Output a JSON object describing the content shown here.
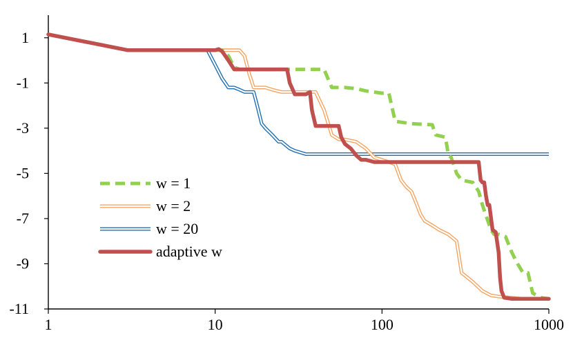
{
  "chart_data": {
    "type": "line",
    "title": "",
    "xlabel": "",
    "ylabel": "",
    "xscale": "log",
    "xlim": [
      1,
      1000
    ],
    "ylim": [
      -11,
      2
    ],
    "x_ticks": [
      "1",
      "10",
      "100",
      "1000"
    ],
    "y_ticks": [
      "1",
      "-1",
      "-3",
      "-5",
      "-7",
      "-9",
      "-11"
    ],
    "legend_position": "lower-left",
    "series": [
      {
        "name": "w = 1",
        "style": "dashed",
        "color": "#92d050",
        "x": [
          1,
          3,
          10,
          11,
          12,
          13,
          14,
          15,
          16,
          18,
          20,
          25,
          30,
          40,
          45,
          48,
          50,
          55,
          60,
          70,
          80,
          100,
          110,
          115,
          120,
          150,
          200,
          210,
          240,
          250,
          260,
          280,
          300,
          350,
          380,
          400,
          450,
          470,
          480,
          500,
          550,
          600,
          650,
          700,
          750,
          800,
          900,
          1000
        ],
        "y": [
          1.15,
          0.45,
          0.45,
          0.45,
          0.2,
          -0.3,
          -0.4,
          -0.4,
          -0.4,
          -0.4,
          -0.4,
          -0.4,
          -0.4,
          -0.4,
          -0.4,
          -0.9,
          -1.2,
          -1.2,
          -1.2,
          -1.25,
          -1.35,
          -1.45,
          -1.45,
          -2.1,
          -2.7,
          -2.8,
          -2.85,
          -3.3,
          -3.4,
          -4.2,
          -4.3,
          -5.0,
          -5.3,
          -5.4,
          -5.8,
          -6.4,
          -7.5,
          -7.7,
          -7.7,
          -7.7,
          -7.8,
          -8.5,
          -9.0,
          -9.4,
          -9.4,
          -10.3,
          -10.5,
          -10.55
        ]
      },
      {
        "name": "w = 2",
        "style": "double",
        "color": "#f4a460",
        "x": [
          1,
          3,
          10,
          14,
          15,
          16,
          17,
          18,
          20,
          22,
          25,
          30,
          35,
          40,
          45,
          50,
          55,
          60,
          70,
          80,
          90,
          100,
          110,
          120,
          130,
          140,
          150,
          160,
          170,
          180,
          200,
          220,
          250,
          280,
          300,
          350,
          400,
          450,
          500,
          600,
          700,
          800,
          1000
        ],
        "y": [
          1.15,
          0.45,
          0.45,
          0.45,
          0.2,
          -0.6,
          -1.2,
          -1.2,
          -1.2,
          -1.3,
          -1.4,
          -1.4,
          -1.4,
          -1.4,
          -2.2,
          -3.3,
          -3.5,
          -3.5,
          -3.6,
          -3.9,
          -4.3,
          -4.4,
          -4.5,
          -4.6,
          -5.3,
          -5.6,
          -5.8,
          -6.3,
          -6.8,
          -7.1,
          -7.3,
          -7.5,
          -7.7,
          -8.0,
          -9.4,
          -9.8,
          -10.2,
          -10.4,
          -10.45,
          -10.5,
          -10.55,
          -10.55,
          -10.55
        ]
      },
      {
        "name": "w = 20",
        "style": "double",
        "color": "#1f6fb2",
        "x": [
          1,
          3,
          9,
          10,
          11,
          12,
          13,
          14,
          15,
          17,
          18,
          19,
          20,
          22,
          24,
          25,
          28,
          30,
          35,
          40,
          50,
          60,
          100,
          200,
          400,
          800,
          1000
        ],
        "y": [
          1.15,
          0.45,
          0.45,
          -0.2,
          -0.8,
          -1.2,
          -1.2,
          -1.3,
          -1.4,
          -1.4,
          -2.1,
          -2.8,
          -3.0,
          -3.3,
          -3.6,
          -3.6,
          -3.9,
          -4.0,
          -4.15,
          -4.15,
          -4.15,
          -4.15,
          -4.15,
          -4.15,
          -4.15,
          -4.15,
          -4.15
        ]
      },
      {
        "name": "adaptive w",
        "style": "solid",
        "color": "#c0504d",
        "x": [
          1,
          3,
          10,
          10.5,
          11,
          12,
          13,
          15,
          20,
          25,
          27,
          28,
          30,
          35,
          37,
          38,
          40,
          45,
          50,
          55,
          57,
          60,
          65,
          70,
          75,
          80,
          90,
          100,
          150,
          200,
          300,
          380,
          390,
          400,
          410,
          420,
          430,
          440,
          460,
          480,
          500,
          510,
          520,
          540,
          600,
          800,
          1000
        ],
        "y": [
          1.15,
          0.45,
          0.45,
          0.5,
          0.4,
          0.0,
          -0.4,
          -0.4,
          -0.4,
          -0.4,
          -0.4,
          -1.0,
          -1.5,
          -1.5,
          -1.4,
          -2.2,
          -2.9,
          -2.9,
          -2.9,
          -2.9,
          -3.4,
          -3.7,
          -3.9,
          -4.2,
          -4.4,
          -4.4,
          -4.5,
          -4.5,
          -4.5,
          -4.5,
          -4.5,
          -4.5,
          -5.3,
          -5.4,
          -5.4,
          -6.0,
          -6.4,
          -6.4,
          -7.5,
          -7.6,
          -8.5,
          -9.6,
          -10.2,
          -10.5,
          -10.55,
          -10.55,
          -10.55
        ]
      }
    ]
  }
}
